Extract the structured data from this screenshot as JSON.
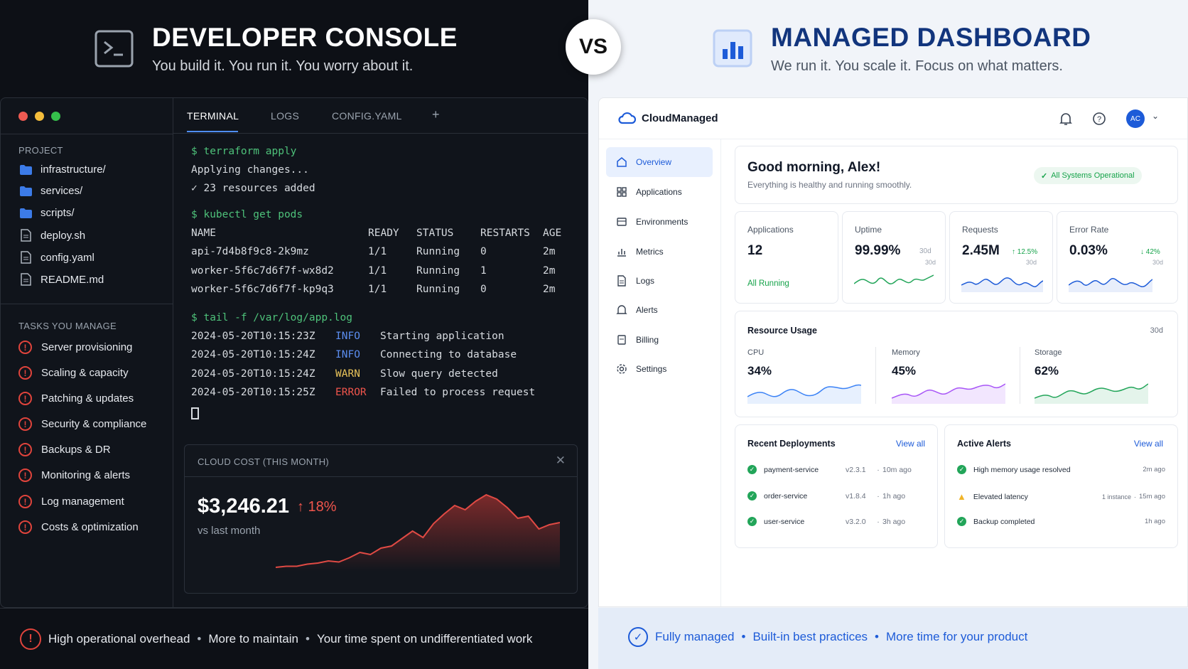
{
  "left_header": {
    "title": "DEVELOPER CONSOLE",
    "subtitle": "You build it. You run it. You worry about it."
  },
  "right_header": {
    "title": "MANAGED DASHBOARD",
    "subtitle": "We run it. You scale it. Focus on what matters."
  },
  "vs_label": "VS",
  "console": {
    "project_label": "PROJECT",
    "files": [
      "infrastructure/",
      "services/",
      "scripts/",
      "deploy.sh",
      "config.yaml",
      "README.md"
    ],
    "tasks_label": "TASKS YOU MANAGE",
    "tasks": [
      "Server provisioning",
      "Scaling & capacity",
      "Patching & updates",
      "Security & compliance",
      "Backups & DR",
      "Monitoring & alerts",
      "Log management",
      "Costs & optimization"
    ],
    "tabs": [
      "TERMINAL",
      "LOGS",
      "CONFIG.YAML",
      "+"
    ],
    "terminal": {
      "cmd1": "$ terraform apply",
      "out1": "Applying changes...",
      "out2": "✓ 23 resources added",
      "cmd2": "$ kubectl get pods",
      "pods_header": [
        "NAME",
        "READY",
        "STATUS",
        "RESTARTS",
        "AGE"
      ],
      "pods": [
        [
          "api-7d4b8f9c8-2k9mz",
          "1/1",
          "Running",
          "0",
          "2m"
        ],
        [
          "worker-5f6c7d6f7f-wx8d2",
          "1/1",
          "Running",
          "1",
          "2m"
        ],
        [
          "worker-5f6c7d6f7f-kp9q3",
          "1/1",
          "Running",
          "0",
          "2m"
        ]
      ],
      "cmd3": "$ tail -f /var/log/app.log",
      "logs": [
        [
          "2024-05-20T10:15:23Z",
          "INFO",
          "Starting application"
        ],
        [
          "2024-05-20T10:15:24Z",
          "INFO",
          "Connecting to database"
        ],
        [
          "2024-05-20T10:15:24Z",
          "WARN",
          "Slow query detected"
        ],
        [
          "2024-05-20T10:15:25Z",
          "ERROR",
          "Failed to process request"
        ]
      ]
    },
    "cost": {
      "title": "CLOUD COST (THIS MONTH)",
      "value": "$3,246.21",
      "change": "↑ 18%",
      "compare": "vs last month",
      "trend": [
        4,
        5,
        5,
        7,
        8,
        10,
        9,
        13,
        18,
        16,
        22,
        24,
        31,
        38,
        32,
        45,
        54,
        62,
        58,
        66,
        72,
        68,
        60,
        50,
        52,
        40,
        44,
        46
      ]
    }
  },
  "left_footer": {
    "items": [
      "High operational overhead",
      "More to maintain",
      "Your time spent on undifferentiated work"
    ],
    "separator": "•"
  },
  "dashboard": {
    "brand": "CloudManaged",
    "avatar": "AC",
    "nav": [
      "Overview",
      "Applications",
      "Environments",
      "Metrics",
      "Logs",
      "Alerts",
      "Billing",
      "Settings"
    ],
    "greeting": "Good morning, Alex!",
    "greeting_sub": "Everything is healthy and running smoothly.",
    "status_badge": "All Systems Operational",
    "kpis": [
      {
        "label": "Applications",
        "value": "12",
        "note": "All Running"
      },
      {
        "label": "Uptime",
        "value": "99.99%",
        "period": "30d",
        "period2": "30d"
      },
      {
        "label": "Requests",
        "value": "2.45M",
        "change": "↑ 12.5%",
        "period": "30d"
      },
      {
        "label": "Error Rate",
        "value": "0.03%",
        "change": "↓ 42%",
        "period": "30d"
      }
    ],
    "resource": {
      "title": "Resource Usage",
      "period": "30d",
      "items": [
        {
          "label": "CPU",
          "value": "34%"
        },
        {
          "label": "Memory",
          "value": "45%"
        },
        {
          "label": "Storage",
          "value": "62%"
        }
      ]
    },
    "deployments": {
      "title": "Recent Deployments",
      "view_all": "View all",
      "rows": [
        {
          "name": "payment-service",
          "version": "v2.3.1",
          "time": "10m ago"
        },
        {
          "name": "order-service",
          "version": "v1.8.4",
          "time": "1h ago"
        },
        {
          "name": "user-service",
          "version": "v3.2.0",
          "time": "3h ago"
        }
      ]
    },
    "alerts": {
      "title": "Active Alerts",
      "view_all": "View all",
      "rows": [
        {
          "text": "High memory usage resolved",
          "meta": "",
          "time": "2m ago"
        },
        {
          "text": "Elevated latency",
          "meta": "1 instance",
          "time": "15m ago"
        },
        {
          "text": "Backup completed",
          "meta": "",
          "time": "1h ago"
        }
      ]
    }
  },
  "right_footer": {
    "items": [
      "Fully managed",
      "Built-in best practices",
      "More time for your product"
    ],
    "separator": "•"
  },
  "colors": {
    "accent": "#1d5bd8",
    "error": "#e0443c",
    "success": "#22a559",
    "term_green": "#4ec27a"
  }
}
